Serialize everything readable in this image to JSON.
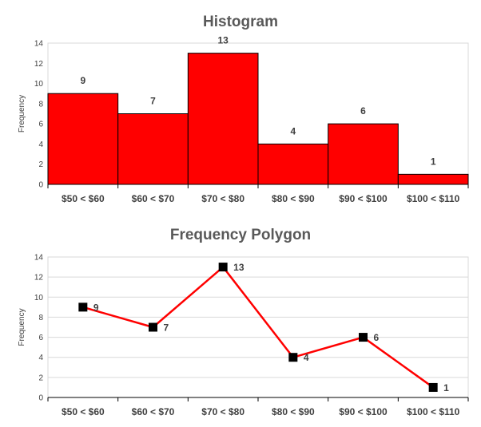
{
  "chart_data": [
    {
      "type": "bar",
      "title": "Histogram",
      "ylabel": "Frequency",
      "xlabel": "",
      "categories": [
        "$50 < $60",
        "$60 < $70",
        "$70 < $80",
        "$80 < $90",
        "$90 < $100",
        "$100 < $110"
      ],
      "values": [
        9,
        7,
        13,
        4,
        6,
        1
      ],
      "ylim": [
        0,
        14
      ],
      "yticks": [
        0,
        2,
        4,
        6,
        8,
        10,
        12,
        14
      ],
      "grid": false,
      "legend": "none",
      "bar_color": "#ff0000",
      "bar_outline": "#000000"
    },
    {
      "type": "line",
      "title": "Frequency Polygon",
      "ylabel": "Frequency",
      "xlabel": "",
      "categories": [
        "$50 < $60",
        "$60 < $70",
        "$70 < $80",
        "$80 < $90",
        "$90 < $100",
        "$100 < $110"
      ],
      "values": [
        9,
        7,
        13,
        4,
        6,
        1
      ],
      "ylim": [
        0,
        14
      ],
      "yticks": [
        0,
        2,
        4,
        6,
        8,
        10,
        12,
        14
      ],
      "grid": true,
      "legend": "none",
      "line_color": "#ff0000",
      "marker": "square",
      "marker_color": "#000000"
    }
  ]
}
